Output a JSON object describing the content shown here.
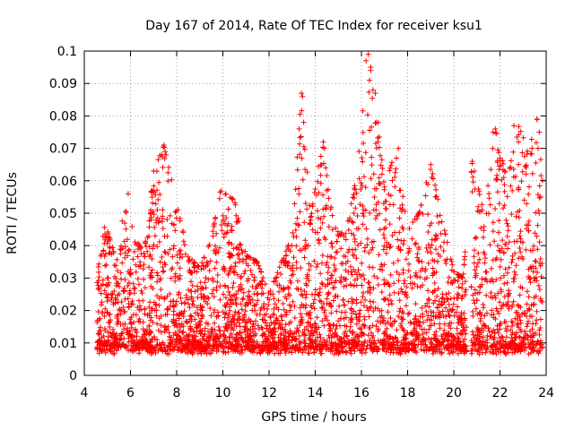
{
  "chart_data": {
    "type": "scatter",
    "title": "Day 167 of 2014, Rate Of TEC Index for receiver ksu1",
    "xlabel": "GPS time / hours",
    "ylabel": "ROTI / TECUs",
    "xlim": [
      4,
      24
    ],
    "ylim": [
      0,
      0.1
    ],
    "x_ticks": [
      "4",
      "6",
      "8",
      "10",
      "12",
      "14",
      "16",
      "18",
      "20",
      "22",
      "24"
    ],
    "y_ticks": [
      "0",
      "0.01",
      "0.02",
      "0.03",
      "0.04",
      "0.05",
      "0.06",
      "0.07",
      "0.08",
      "0.09",
      "0.1"
    ],
    "grid": true,
    "marker": "+",
    "color": "#ff0000",
    "time_range_hours": [
      4.55,
      23.85
    ],
    "envelope": [
      {
        "x": 4.6,
        "upper": 0.033
      },
      {
        "x": 4.9,
        "upper": 0.047
      },
      {
        "x": 5.4,
        "upper": 0.035
      },
      {
        "x": 5.8,
        "upper": 0.056
      },
      {
        "x": 6.2,
        "upper": 0.042
      },
      {
        "x": 6.6,
        "upper": 0.038
      },
      {
        "x": 7.0,
        "upper": 0.063
      },
      {
        "x": 7.45,
        "upper": 0.071
      },
      {
        "x": 8.0,
        "upper": 0.053
      },
      {
        "x": 8.5,
        "upper": 0.037
      },
      {
        "x": 9.0,
        "upper": 0.033
      },
      {
        "x": 9.5,
        "upper": 0.042
      },
      {
        "x": 9.9,
        "upper": 0.057
      },
      {
        "x": 10.5,
        "upper": 0.054
      },
      {
        "x": 11.0,
        "upper": 0.037
      },
      {
        "x": 11.5,
        "upper": 0.035
      },
      {
        "x": 12.0,
        "upper": 0.025
      },
      {
        "x": 12.6,
        "upper": 0.036
      },
      {
        "x": 13.0,
        "upper": 0.043
      },
      {
        "x": 13.4,
        "upper": 0.087
      },
      {
        "x": 13.8,
        "upper": 0.048
      },
      {
        "x": 14.3,
        "upper": 0.072
      },
      {
        "x": 14.8,
        "upper": 0.046
      },
      {
        "x": 15.3,
        "upper": 0.043
      },
      {
        "x": 15.8,
        "upper": 0.062
      },
      {
        "x": 16.3,
        "upper": 0.099
      },
      {
        "x": 16.6,
        "upper": 0.088
      },
      {
        "x": 17.0,
        "upper": 0.058
      },
      {
        "x": 17.5,
        "upper": 0.07
      },
      {
        "x": 18.0,
        "upper": 0.045
      },
      {
        "x": 18.5,
        "upper": 0.05
      },
      {
        "x": 19.0,
        "upper": 0.065
      },
      {
        "x": 19.5,
        "upper": 0.048
      },
      {
        "x": 20.0,
        "upper": 0.032
      },
      {
        "x": 20.4,
        "upper": 0.03
      },
      {
        "x": 20.8,
        "upper": 0.066
      },
      {
        "x": 21.3,
        "upper": 0.05
      },
      {
        "x": 21.8,
        "upper": 0.076
      },
      {
        "x": 22.3,
        "upper": 0.06
      },
      {
        "x": 22.8,
        "upper": 0.077
      },
      {
        "x": 23.2,
        "upper": 0.07
      },
      {
        "x": 23.6,
        "upper": 0.079
      },
      {
        "x": 23.85,
        "upper": 0.076
      }
    ],
    "lower_bound": 0.004,
    "gap_hours": [
      [
        20.55,
        20.75
      ]
    ],
    "notable_points": [
      {
        "x": 5.9,
        "y": 0.056
      },
      {
        "x": 7.0,
        "y": 0.063
      },
      {
        "x": 7.45,
        "y": 0.071
      },
      {
        "x": 7.5,
        "y": 0.069
      },
      {
        "x": 13.4,
        "y": 0.087
      },
      {
        "x": 13.45,
        "y": 0.086
      },
      {
        "x": 13.5,
        "y": 0.078
      },
      {
        "x": 13.3,
        "y": 0.076
      },
      {
        "x": 14.35,
        "y": 0.072
      },
      {
        "x": 14.4,
        "y": 0.07
      },
      {
        "x": 16.2,
        "y": 0.097
      },
      {
        "x": 16.3,
        "y": 0.099
      },
      {
        "x": 16.4,
        "y": 0.094
      },
      {
        "x": 16.35,
        "y": 0.091
      },
      {
        "x": 16.5,
        "y": 0.088
      },
      {
        "x": 16.6,
        "y": 0.087
      },
      {
        "x": 16.65,
        "y": 0.078
      },
      {
        "x": 17.6,
        "y": 0.07
      },
      {
        "x": 19.0,
        "y": 0.065
      },
      {
        "x": 20.8,
        "y": 0.066
      },
      {
        "x": 21.7,
        "y": 0.075
      },
      {
        "x": 21.8,
        "y": 0.076
      },
      {
        "x": 22.6,
        "y": 0.077
      },
      {
        "x": 22.8,
        "y": 0.072
      },
      {
        "x": 23.6,
        "y": 0.079
      },
      {
        "x": 23.7,
        "y": 0.075
      },
      {
        "x": 23.65,
        "y": 0.07
      }
    ]
  }
}
